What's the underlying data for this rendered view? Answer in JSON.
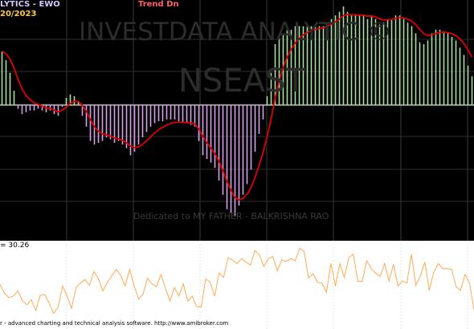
{
  "window": {
    "title": "LYTICS - EWO",
    "date": "20/2023",
    "trend": "Trend Dn"
  },
  "watermark": {
    "main": "INVESTDATA ANALYTIC ©",
    "symbol": "NSEAST",
    "dedication": "Dedicated to MY FATHER - BALKRISHNA RAO"
  },
  "indicator_pane": {
    "value_text": "= 30.26",
    "footer": "r - advanced charting and technical analysis software. http://www.amibroker.com"
  },
  "colors": {
    "up_bar": "#a8e0a0",
    "down_bar": "#d8a0e8",
    "signal_line": "#e00000",
    "price_line": "#ffaa55"
  },
  "chart_data": [
    {
      "type": "bar",
      "values": [
        30,
        25,
        18,
        8,
        -2,
        -5,
        -4,
        -3,
        -3,
        -2,
        -3,
        -4,
        -3,
        -5,
        -6,
        -1,
        4,
        6,
        5,
        2,
        -6,
        -12,
        -20,
        -22,
        -21,
        -20,
        -18,
        -19,
        -21,
        -20,
        -22,
        -24,
        -28,
        -26,
        -22,
        -18,
        -15,
        -12,
        -10,
        -9,
        -9,
        -8,
        -8,
        -8,
        -9,
        -10,
        -10,
        -11,
        -12,
        -20,
        -28,
        -30,
        -32,
        -35,
        -42,
        -50,
        -58,
        -60,
        -62,
        -56,
        -50,
        -44,
        -36,
        -26,
        -16,
        -8,
        5,
        18,
        34,
        38,
        40,
        42,
        42,
        44,
        44,
        44,
        44,
        44,
        44,
        44,
        44,
        46,
        48,
        50,
        52,
        55,
        52,
        50,
        50,
        50,
        50,
        48,
        50,
        48,
        45,
        46,
        48,
        48,
        50,
        50,
        48,
        46,
        44,
        40,
        35,
        34,
        36,
        40,
        42,
        42,
        41,
        40,
        38,
        36,
        32,
        28,
        22,
        16
      ],
      "ylim": [
        -72,
        55
      ]
    },
    {
      "type": "line",
      "values": [
        46,
        34,
        28,
        30,
        37,
        24,
        18,
        25,
        10,
        31,
        32,
        20,
        6,
        15,
        44,
        30,
        13,
        42,
        48,
        53,
        45,
        64,
        54,
        37,
        49,
        58,
        67,
        59,
        44,
        67,
        44,
        26,
        33,
        55,
        47,
        43,
        60,
        41,
        23,
        42,
        30,
        47,
        23,
        30,
        15,
        15,
        54,
        49,
        30,
        62,
        56,
        83,
        80,
        75,
        82,
        77,
        73,
        93,
        87,
        71,
        82,
        85,
        65,
        80,
        78,
        82,
        79,
        96,
        92,
        55,
        61,
        49,
        48,
        35,
        75,
        44,
        75,
        56,
        83,
        88,
        51,
        50,
        79,
        68,
        62,
        57,
        75,
        51,
        74,
        44,
        51,
        48,
        88,
        45,
        58,
        77,
        38,
        63,
        75,
        68,
        68,
        67,
        43,
        38,
        60,
        48,
        11
      ],
      "ylim": [
        0,
        100
      ]
    }
  ]
}
